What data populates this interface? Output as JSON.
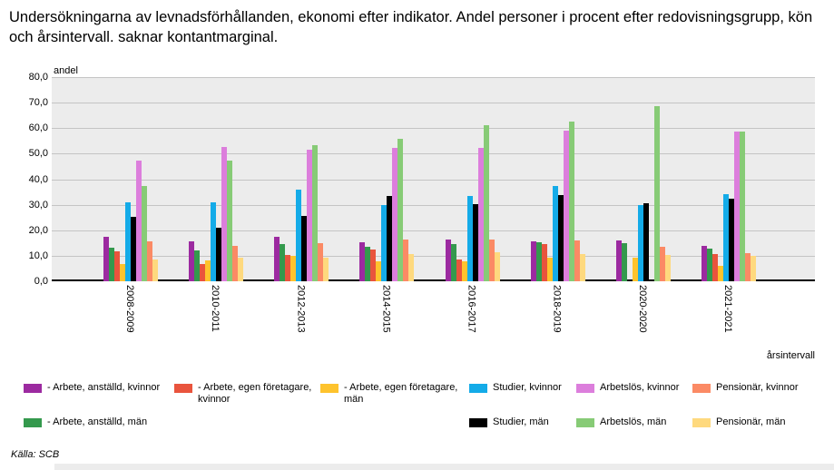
{
  "title": "Undersökningarna av levnadsförhållanden, ekonomi efter indikator. Andel personer i procent efter redovisningsgrupp, kön och årsintervall. saknar kontantmarginal.",
  "source": "Källa: SCB",
  "y_axis": {
    "unit_label": "andel",
    "max": 80,
    "step": 10,
    "tick_labels": [
      "0,0",
      "10,0",
      "20,0",
      "30,0",
      "40,0",
      "50,0",
      "60,0",
      "70,0",
      "80,0"
    ]
  },
  "x_axis": {
    "title": "årsintervall"
  },
  "chart_data": {
    "type": "bar",
    "title": "Undersökningarna av levnadsförhållanden, ekonomi efter indikator. Andel personer i procent efter redovisningsgrupp, kön och årsintervall. saknar kontantmarginal.",
    "ylabel": "andel",
    "xlabel": "årsintervall",
    "ylim": [
      0,
      80
    ],
    "grid": true,
    "plot_bg_color": "#ECECEC",
    "gridline_color": "#C4C4C4",
    "legend_position": "bottom",
    "categories": [
      "2008-2009",
      "2010-2011",
      "2012-2013",
      "2014-2015",
      "2016-2017",
      "2018-2019",
      "2020-2020",
      "2021-2021"
    ],
    "series": [
      {
        "name": "- Arbete, anställd, kvinnor",
        "color": "#9C2AA0",
        "values": [
          17.5,
          15.7,
          17.4,
          15.2,
          16.5,
          15.7,
          16.1,
          13.7
        ]
      },
      {
        "name": "- Arbete, anställd, män",
        "color": "#34994D",
        "values": [
          13.0,
          12.2,
          14.6,
          13.5,
          14.6,
          15.2,
          14.9,
          12.9
        ]
      },
      {
        "name": "- Arbete, egen företagare, kvinnor",
        "color": "#E9543D",
        "values": [
          11.8,
          6.6,
          10.2,
          12.4,
          8.7,
          14.7,
          null,
          10.8
        ]
      },
      {
        "name": "- Arbete, egen företagare, män",
        "color": "#FEC32D",
        "values": [
          6.8,
          8.2,
          9.8,
          8.0,
          7.9,
          9.1,
          9.1,
          5.9
        ]
      },
      {
        "name": "Studier, kvinnor",
        "color": "#14ABE8",
        "values": [
          30.8,
          30.9,
          35.8,
          30.0,
          33.3,
          37.5,
          30.0,
          34.3
        ]
      },
      {
        "name": "Studier, män",
        "color": "#000000",
        "values": [
          25.3,
          21.1,
          25.5,
          33.6,
          30.4,
          33.7,
          30.6,
          32.2
        ]
      },
      {
        "name": "Arbetslös, kvinnor",
        "color": "#DC7EDC",
        "values": [
          47.2,
          52.6,
          51.5,
          52.2,
          52.2,
          59.0,
          null,
          58.6
        ]
      },
      {
        "name": "Arbetslös, män",
        "color": "#87CB76",
        "values": [
          37.2,
          47.2,
          53.2,
          55.8,
          61.3,
          62.7,
          68.8,
          58.6
        ]
      },
      {
        "name": "Pensionär, kvinnor",
        "color": "#FB8A65",
        "values": [
          15.7,
          13.7,
          14.8,
          16.5,
          16.5,
          16.0,
          13.6,
          11.2
        ]
      },
      {
        "name": "Pensionär, män",
        "color": "#FED97E",
        "values": [
          8.7,
          9.1,
          9.1,
          10.7,
          11.3,
          10.6,
          10.2,
          10.0
        ]
      }
    ],
    "legend_rows": [
      [
        0,
        2,
        3,
        4,
        6,
        8
      ],
      [
        1,
        5,
        7,
        9
      ]
    ]
  }
}
